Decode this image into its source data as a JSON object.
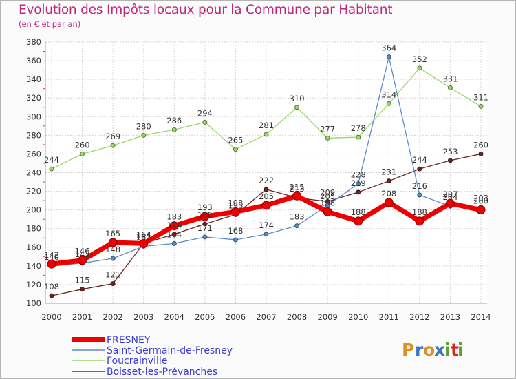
{
  "title": "Evolution des Impôts locaux pour la Commune par Habitant",
  "subtitle": "(en € et par an)",
  "logo": {
    "letters": [
      "P",
      "r",
      "o",
      "x",
      "i",
      "t",
      "i"
    ],
    "colors": [
      "#e0901e",
      "#3a74c4",
      "#e0901e",
      "#3a74c4",
      "#5aa02c",
      "#e02020",
      "#5aa02c"
    ]
  },
  "chart_data": {
    "type": "line",
    "title": "Evolution des Impôts locaux pour la Commune par Habitant",
    "subtitle": "(en € et par an)",
    "x": [
      "2000",
      "2001",
      "2002",
      "2003",
      "2004",
      "2005",
      "2006",
      "2007",
      "2008",
      "2009",
      "2010",
      "2011",
      "2012",
      "2013",
      "2014"
    ],
    "ylim": [
      100,
      380
    ],
    "yticks": [
      100,
      120,
      140,
      160,
      180,
      200,
      220,
      240,
      260,
      280,
      300,
      320,
      340,
      360,
      380
    ],
    "grid": true,
    "legend_position": "bottom-left",
    "series": [
      {
        "name": "FRESNEY",
        "color": "#ee0000",
        "values": [
          142,
          146,
          165,
          164,
          183,
          193,
          198,
          205,
          215,
          198,
          188,
          208,
          188,
          207,
          200
        ],
        "labels": [
          "142",
          "146",
          "165",
          "164",
          "183",
          "193",
          "198",
          "205",
          "215",
          "198",
          "188",
          "208",
          "188",
          "207",
          "200"
        ]
      },
      {
        "name": "Saint-Germain-de-Fresney",
        "color": "#5a8dc8",
        "values": [
          140,
          143,
          148,
          161,
          164,
          171,
          168,
          174,
          183,
          205,
          228,
          364,
          216,
          204,
          203
        ],
        "labels": [
          "140",
          "143",
          "148",
          "161",
          "164",
          "171",
          "168",
          "174",
          "183",
          "205",
          "228",
          "364",
          "216",
          "204",
          "203"
        ]
      },
      {
        "name": "Foucrainville",
        "color": "#99d868",
        "values": [
          244,
          260,
          269,
          280,
          286,
          294,
          265,
          281,
          310,
          277,
          278,
          314,
          352,
          331,
          311
        ],
        "labels": [
          "244",
          "260",
          "269",
          "280",
          "286",
          "294",
          "265",
          "281",
          "310",
          "277",
          "278",
          "314",
          "352",
          "331",
          "311"
        ]
      },
      {
        "name": "Boisset-les-Prévanches",
        "color": "#6e2424",
        "values": [
          108,
          115,
          121,
          164,
          174,
          185,
          195,
          222,
          213,
          209,
          219,
          231,
          244,
          253,
          260
        ],
        "labels": [
          "108",
          "115",
          "121",
          "164",
          "174",
          "185",
          "195",
          "222",
          "213",
          "209",
          "219",
          "231",
          "244",
          "253",
          "260"
        ]
      }
    ]
  }
}
